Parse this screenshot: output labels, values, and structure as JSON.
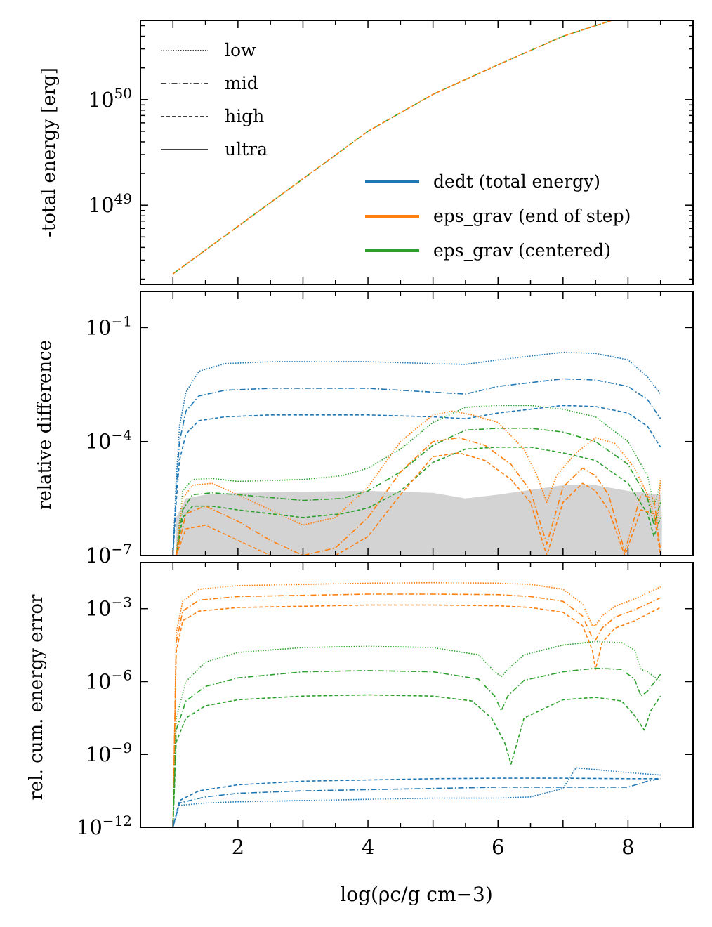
{
  "chart_data": [
    {
      "panel": "top",
      "type": "line",
      "ylabel": "-total energy [erg]",
      "yscale": "log",
      "xlim": [
        0.5,
        9.0
      ],
      "ylim_exp": [
        48.25,
        50.75
      ],
      "yticks": [
        {
          "exp": 50,
          "base": "10",
          "sup": "50"
        },
        {
          "exp": 49,
          "base": "10",
          "sup": "49"
        }
      ],
      "grid": false,
      "legend_styles": {
        "placement": "upper-left",
        "entries": [
          {
            "label": "low",
            "dash": "1.5 2"
          },
          {
            "label": "mid",
            "dash": "8 3 1.5 3"
          },
          {
            "label": "high",
            "dash": "5 3"
          },
          {
            "label": "ultra",
            "dash": ""
          }
        ]
      },
      "legend_colors": {
        "placement": "lower-right",
        "entries": [
          {
            "label": "dedt (total energy)",
            "color": "#1f77b4"
          },
          {
            "label": "eps_grav (end of step)",
            "color": "#ff7f0e"
          },
          {
            "label": "eps_grav (centered)",
            "color": "#2ca02c"
          }
        ]
      },
      "series": [
        {
          "style": "mid",
          "color": "#2ca02c",
          "x": [
            1.0,
            2.0,
            3.0,
            4.0,
            5.0,
            6.0,
            7.0,
            8.0,
            8.5
          ],
          "y_exp": [
            48.35,
            48.8,
            49.25,
            49.7,
            50.05,
            50.33,
            50.6,
            50.8,
            50.9
          ]
        },
        {
          "style": "high",
          "color": "#ff7f0e",
          "x": [
            1.0,
            2.0,
            3.0,
            4.0,
            5.0,
            6.0,
            7.0,
            8.0,
            8.5
          ],
          "y_exp": [
            48.35,
            48.8,
            49.25,
            49.7,
            50.05,
            50.33,
            50.6,
            50.8,
            50.9
          ]
        }
      ]
    },
    {
      "panel": "middle",
      "type": "line",
      "ylabel": "relative difference",
      "yscale": "log",
      "xlim": [
        0.5,
        9.0
      ],
      "ylim_exp": [
        -7,
        -0.05
      ],
      "yticks": [
        {
          "exp": -1,
          "base": "10",
          "sup": "−1"
        },
        {
          "exp": -4,
          "base": "10",
          "sup": "−4"
        },
        {
          "exp": -7,
          "base": "10",
          "sup": "−7"
        }
      ],
      "band": {
        "color": "#d3d3d3",
        "x": [
          1.05,
          1.2,
          1.5,
          2.0,
          3.0,
          4.0,
          5.0,
          5.5,
          6.0,
          7.0,
          7.5,
          8.0,
          8.5,
          8.52
        ],
        "y_exp": [
          -6.0,
          -5.5,
          -5.4,
          -5.35,
          -5.32,
          -5.3,
          -5.35,
          -5.5,
          -5.4,
          -5.15,
          -5.15,
          -5.3,
          -5.4,
          -6.0
        ]
      },
      "series": [
        {
          "style": "low",
          "color": "#1f77b4",
          "x": [
            1.0,
            1.05,
            1.1,
            1.2,
            1.4,
            1.8,
            2.5,
            4.0,
            5.0,
            5.5,
            6.0,
            7.0,
            7.5,
            8.0,
            8.3,
            8.5
          ],
          "y_exp": [
            -7.0,
            -5.0,
            -3.6,
            -2.7,
            -2.15,
            -1.95,
            -1.9,
            -1.9,
            -1.95,
            -1.97,
            -1.85,
            -1.65,
            -1.68,
            -1.85,
            -2.3,
            -2.75
          ]
        },
        {
          "style": "mid",
          "color": "#1f77b4",
          "x": [
            1.0,
            1.05,
            1.1,
            1.2,
            1.4,
            1.8,
            2.5,
            4.0,
            5.0,
            5.5,
            6.0,
            7.0,
            7.5,
            8.0,
            8.3,
            8.5
          ],
          "y_exp": [
            -7.0,
            -5.3,
            -4.0,
            -3.2,
            -2.8,
            -2.65,
            -2.6,
            -2.6,
            -2.7,
            -2.75,
            -2.55,
            -2.35,
            -2.38,
            -2.55,
            -2.9,
            -3.4
          ]
        },
        {
          "style": "high",
          "color": "#1f77b4",
          "x": [
            1.0,
            1.05,
            1.1,
            1.2,
            1.4,
            1.8,
            2.5,
            4.0,
            5.0,
            5.5,
            6.0,
            7.0,
            7.5,
            8.0,
            8.3,
            8.5
          ],
          "y_exp": [
            -7.0,
            -5.6,
            -4.5,
            -3.8,
            -3.45,
            -3.35,
            -3.3,
            -3.3,
            -3.35,
            -3.4,
            -3.25,
            -3.05,
            -3.08,
            -3.25,
            -3.6,
            -4.15
          ]
        },
        {
          "style": "low",
          "color": "#2ca02c",
          "x": [
            1.05,
            1.15,
            1.3,
            1.6,
            2.0,
            3.0,
            3.6,
            4.0,
            4.5,
            5.0,
            5.5,
            6.0,
            6.5,
            7.0,
            7.5,
            8.0,
            8.3,
            8.4,
            8.5
          ],
          "y_exp": [
            -7.0,
            -5.3,
            -5.0,
            -4.97,
            -5.05,
            -5.0,
            -4.9,
            -4.7,
            -4.2,
            -3.5,
            -3.1,
            -3.05,
            -3.05,
            -3.15,
            -3.35,
            -4.0,
            -4.9,
            -5.7,
            -5.1
          ]
        },
        {
          "style": "mid",
          "color": "#2ca02c",
          "x": [
            1.05,
            1.15,
            1.3,
            1.6,
            2.0,
            3.0,
            3.6,
            4.0,
            4.5,
            5.0,
            5.5,
            6.0,
            6.5,
            7.0,
            7.5,
            8.0,
            8.3,
            8.4,
            8.5
          ],
          "y_exp": [
            -7.0,
            -5.8,
            -5.4,
            -5.35,
            -5.4,
            -5.55,
            -5.5,
            -5.3,
            -4.8,
            -4.1,
            -3.7,
            -3.65,
            -3.65,
            -3.75,
            -4.0,
            -4.6,
            -5.5,
            -6.2,
            -5.6
          ]
        },
        {
          "style": "high",
          "color": "#2ca02c",
          "x": [
            1.05,
            1.15,
            1.3,
            1.6,
            2.0,
            3.0,
            3.6,
            4.0,
            4.5,
            5.0,
            5.5,
            6.0,
            6.5,
            7.0,
            7.5,
            8.0,
            8.3,
            8.4,
            8.5
          ],
          "y_exp": [
            -7.0,
            -6.0,
            -5.7,
            -5.7,
            -5.8,
            -6.0,
            -5.9,
            -5.75,
            -5.3,
            -4.55,
            -4.2,
            -4.15,
            -4.15,
            -4.3,
            -4.5,
            -5.1,
            -5.9,
            -6.5,
            -6.0
          ]
        },
        {
          "style": "low",
          "color": "#ff7f0e",
          "x": [
            1.05,
            1.15,
            1.3,
            1.6,
            2.0,
            2.5,
            3.0,
            3.5,
            4.0,
            4.5,
            5.0,
            5.3,
            5.6,
            6.0,
            6.4,
            6.6,
            6.75,
            6.9,
            7.2,
            7.5,
            7.8,
            8.1,
            8.3,
            8.45,
            8.5
          ],
          "y_exp": [
            -7.0,
            -5.5,
            -5.15,
            -5.1,
            -5.4,
            -5.8,
            -6.2,
            -6.0,
            -5.2,
            -4.0,
            -3.3,
            -3.2,
            -3.3,
            -3.5,
            -4.2,
            -4.9,
            -5.6,
            -4.9,
            -4.3,
            -3.9,
            -4.05,
            -4.7,
            -5.4,
            -6.2,
            -5.0
          ]
        },
        {
          "style": "mid",
          "color": "#ff7f0e",
          "x": [
            1.05,
            1.2,
            1.5,
            2.0,
            2.5,
            3.0,
            3.5,
            4.0,
            4.5,
            5.0,
            5.4,
            5.8,
            6.2,
            6.5,
            6.75,
            7.0,
            7.3,
            7.5,
            7.7,
            7.95,
            8.2,
            8.4,
            8.5
          ],
          "y_exp": [
            -7.0,
            -5.9,
            -5.7,
            -6.1,
            -6.6,
            -7.0,
            -6.8,
            -6.0,
            -4.8,
            -4.0,
            -3.9,
            -4.1,
            -4.6,
            -5.3,
            -6.7,
            -5.2,
            -4.7,
            -4.9,
            -5.4,
            -6.9,
            -5.4,
            -5.5,
            -6.9
          ]
        },
        {
          "style": "high",
          "color": "#ff7f0e",
          "x": [
            1.05,
            1.2,
            1.5,
            2.0,
            2.5,
            3.0,
            3.5,
            4.0,
            4.5,
            5.0,
            5.4,
            5.8,
            6.2,
            6.5,
            6.75,
            7.0,
            7.3,
            7.5,
            7.7,
            7.95,
            8.2,
            8.4,
            8.5
          ],
          "y_exp": [
            -7.0,
            -6.3,
            -6.2,
            -6.6,
            -7.0,
            -7.0,
            -7.0,
            -6.5,
            -5.4,
            -4.4,
            -4.3,
            -4.5,
            -5.0,
            -5.6,
            -7.0,
            -5.6,
            -5.1,
            -5.3,
            -5.8,
            -7.0,
            -5.8,
            -5.9,
            -7.0
          ]
        }
      ]
    },
    {
      "panel": "bottom",
      "type": "line",
      "ylabel": "rel. cum. energy error",
      "xlabel": "log(ρc/g cm−3)",
      "yscale": "log",
      "xlim": [
        0.5,
        9.0
      ],
      "ylim_exp": [
        -12,
        -1.1
      ],
      "xticks": [
        2,
        4,
        6,
        8
      ],
      "yticks": [
        {
          "exp": -3,
          "base": "10",
          "sup": "−3"
        },
        {
          "exp": -6,
          "base": "10",
          "sup": "−6"
        },
        {
          "exp": -9,
          "base": "10",
          "sup": "−9"
        },
        {
          "exp": -12,
          "base": "10",
          "sup": "−12"
        }
      ],
      "series": [
        {
          "style": "low",
          "color": "#ff7f0e",
          "x": [
            1.0,
            1.05,
            1.15,
            1.4,
            2.0,
            3.0,
            4.0,
            5.0,
            6.0,
            6.5,
            7.0,
            7.3,
            7.45,
            7.5,
            7.6,
            7.8,
            8.1,
            8.5
          ],
          "y_exp": [
            -12.0,
            -4.0,
            -2.7,
            -2.2,
            -2.05,
            -2.0,
            -1.95,
            -1.93,
            -1.95,
            -2.0,
            -2.2,
            -2.8,
            -3.7,
            -3.7,
            -3.3,
            -2.9,
            -2.6,
            -2.1
          ]
        },
        {
          "style": "mid",
          "color": "#ff7f0e",
          "x": [
            1.0,
            1.05,
            1.15,
            1.4,
            2.0,
            3.0,
            4.0,
            5.0,
            6.0,
            6.5,
            7.0,
            7.3,
            7.45,
            7.5,
            7.6,
            7.8,
            8.1,
            8.5
          ],
          "y_exp": [
            -12.0,
            -4.4,
            -3.1,
            -2.65,
            -2.5,
            -2.45,
            -2.4,
            -2.4,
            -2.42,
            -2.5,
            -2.7,
            -3.3,
            -4.2,
            -4.3,
            -3.8,
            -3.35,
            -3.05,
            -2.55
          ]
        },
        {
          "style": "high",
          "color": "#ff7f0e",
          "x": [
            1.0,
            1.05,
            1.15,
            1.4,
            2.0,
            3.0,
            4.0,
            5.0,
            6.0,
            6.5,
            7.0,
            7.3,
            7.45,
            7.5,
            7.6,
            7.8,
            8.1,
            8.5
          ],
          "y_exp": [
            -12.0,
            -4.8,
            -3.5,
            -3.1,
            -2.95,
            -2.9,
            -2.85,
            -2.85,
            -2.88,
            -2.95,
            -3.15,
            -3.7,
            -4.7,
            -5.5,
            -4.4,
            -3.8,
            -3.5,
            -2.95
          ]
        },
        {
          "style": "low",
          "color": "#2ca02c",
          "x": [
            1.0,
            1.05,
            1.2,
            1.5,
            2.0,
            3.0,
            4.0,
            5.0,
            5.7,
            5.95,
            6.05,
            6.15,
            6.4,
            7.0,
            7.5,
            7.9,
            8.1,
            8.2,
            8.3,
            8.5
          ],
          "y_exp": [
            -12.0,
            -7.5,
            -6.0,
            -5.2,
            -4.8,
            -4.6,
            -4.55,
            -4.6,
            -4.9,
            -5.6,
            -5.8,
            -5.5,
            -4.9,
            -4.5,
            -4.35,
            -4.4,
            -4.7,
            -5.5,
            -5.6,
            -6.0
          ]
        },
        {
          "style": "mid",
          "color": "#2ca02c",
          "x": [
            1.0,
            1.05,
            1.2,
            1.5,
            2.0,
            3.0,
            4.0,
            5.0,
            5.7,
            5.95,
            6.05,
            6.15,
            6.4,
            7.0,
            7.5,
            7.9,
            8.1,
            8.2,
            8.3,
            8.5
          ],
          "y_exp": [
            -12.0,
            -8.0,
            -6.8,
            -6.2,
            -5.85,
            -5.6,
            -5.55,
            -5.6,
            -5.9,
            -6.6,
            -7.2,
            -6.6,
            -5.95,
            -5.6,
            -5.45,
            -5.5,
            -5.9,
            -6.6,
            -6.4,
            -5.7
          ]
        },
        {
          "style": "high",
          "color": "#2ca02c",
          "x": [
            1.0,
            1.05,
            1.2,
            1.5,
            2.0,
            3.0,
            4.0,
            5.0,
            5.6,
            5.9,
            6.1,
            6.2,
            6.4,
            7.0,
            7.5,
            7.9,
            8.1,
            8.25,
            8.35,
            8.5
          ],
          "y_exp": [
            -12.0,
            -8.5,
            -7.5,
            -7.0,
            -6.75,
            -6.6,
            -6.55,
            -6.6,
            -6.8,
            -7.5,
            -8.5,
            -9.4,
            -7.5,
            -6.75,
            -6.65,
            -6.8,
            -7.4,
            -8.0,
            -7.2,
            -6.6
          ]
        },
        {
          "style": "low",
          "color": "#1f77b4",
          "x": [
            1.0,
            1.1,
            1.5,
            2.0,
            3.0,
            4.0,
            5.0,
            6.0,
            6.5,
            7.0,
            7.2,
            7.6,
            8.0,
            8.5
          ],
          "y_exp": [
            -12.0,
            -11.1,
            -11.0,
            -10.95,
            -10.9,
            -10.85,
            -10.8,
            -10.8,
            -10.75,
            -10.4,
            -9.55,
            -9.65,
            -9.75,
            -9.85
          ]
        },
        {
          "style": "mid",
          "color": "#1f77b4",
          "x": [
            1.0,
            1.1,
            1.5,
            2.0,
            3.0,
            4.0,
            5.0,
            6.0,
            7.0,
            7.5,
            8.0,
            8.3,
            8.5
          ],
          "y_exp": [
            -12.0,
            -11.0,
            -10.75,
            -10.6,
            -10.5,
            -10.45,
            -10.4,
            -10.35,
            -10.35,
            -10.35,
            -10.35,
            -10.1,
            -10.0
          ]
        },
        {
          "style": "high",
          "color": "#1f77b4",
          "x": [
            1.0,
            1.1,
            1.4,
            2.0,
            3.0,
            4.0,
            5.0,
            6.0,
            7.0,
            8.0,
            8.5
          ],
          "y_exp": [
            -12.0,
            -10.9,
            -10.5,
            -10.25,
            -10.1,
            -10.05,
            -10.0,
            -9.98,
            -9.98,
            -10.0,
            -10.0
          ]
        }
      ]
    }
  ]
}
